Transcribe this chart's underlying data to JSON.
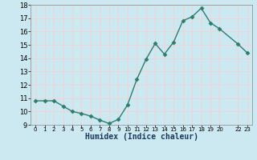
{
  "x": [
    0,
    1,
    2,
    3,
    4,
    5,
    6,
    7,
    8,
    9,
    10,
    11,
    12,
    13,
    14,
    15,
    16,
    17,
    18,
    19,
    20,
    22,
    23
  ],
  "y": [
    10.8,
    10.8,
    10.8,
    10.4,
    10.0,
    9.85,
    9.65,
    9.35,
    9.1,
    9.4,
    10.5,
    12.4,
    13.9,
    15.1,
    14.3,
    15.2,
    16.8,
    17.1,
    17.75,
    16.65,
    16.2,
    15.05,
    14.4
  ],
  "xlabel": "Humidex (Indice chaleur)",
  "xlim": [
    -0.5,
    23.5
  ],
  "ylim": [
    9,
    18
  ],
  "yticks": [
    9,
    10,
    11,
    12,
    13,
    14,
    15,
    16,
    17,
    18
  ],
  "xtick_positions": [
    0,
    1,
    2,
    3,
    4,
    5,
    6,
    7,
    8,
    9,
    10,
    11,
    12,
    13,
    14,
    15,
    16,
    17,
    18,
    19,
    20,
    22,
    23
  ],
  "xtick_labels": [
    "0",
    "1",
    "2",
    "3",
    "4",
    "5",
    "6",
    "7",
    "8",
    "9",
    "10",
    "11",
    "12",
    "13",
    "14",
    "15",
    "16",
    "17",
    "18",
    "19",
    "20",
    "22",
    "23"
  ],
  "line_color": "#2d7d6e",
  "bg_color": "#cce8f0",
  "grid_color": "#ffcccc",
  "marker_size": 2.5,
  "line_width": 1.0
}
